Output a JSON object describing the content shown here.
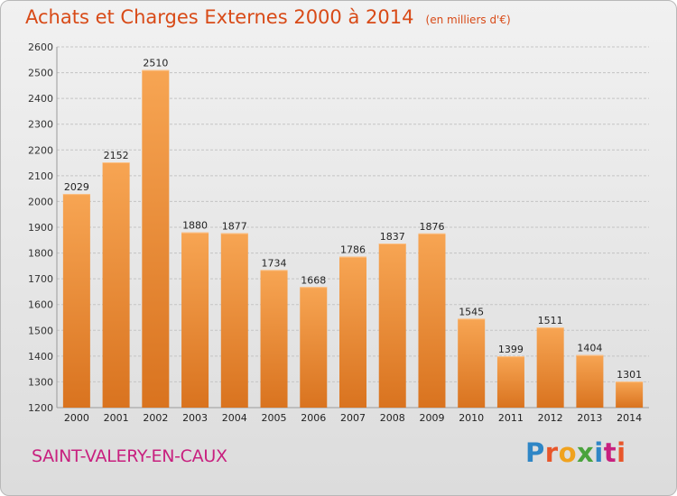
{
  "header": {
    "title": "Achats et Charges Externes 2000 à 2014",
    "unit": "(en milliers d'€)"
  },
  "footer": {
    "commune": "SAINT-VALERY-EN-CAUX",
    "logo_text": "Proxiti"
  },
  "colors": {
    "title": "#d84a17",
    "commune": "#c8207f",
    "bar_top": "#f7a553",
    "bar_bottom": "#d9731f",
    "logo": [
      "#2f86c6",
      "#e8562a",
      "#f0a21e",
      "#4aa33d",
      "#2f86c6",
      "#c8207f",
      "#e8562a"
    ]
  },
  "chart_data": {
    "type": "bar",
    "title": "Achats et Charges Externes 2000 à 2014",
    "subtitle": "(en milliers d'€)",
    "xlabel": "",
    "ylabel": "",
    "categories": [
      "2000",
      "2001",
      "2002",
      "2003",
      "2004",
      "2005",
      "2006",
      "2007",
      "2008",
      "2009",
      "2010",
      "2011",
      "2012",
      "2013",
      "2014"
    ],
    "values": [
      2029,
      2152,
      2510,
      1880,
      1877,
      1734,
      1668,
      1786,
      1837,
      1876,
      1545,
      1399,
      1511,
      1404,
      1301
    ],
    "ylim": [
      1200,
      2600
    ],
    "yticks": [
      1200,
      1300,
      1400,
      1500,
      1600,
      1700,
      1800,
      1900,
      2000,
      2100,
      2200,
      2300,
      2400,
      2500,
      2600
    ],
    "grid": true,
    "legend": "none",
    "data_labels": true
  }
}
